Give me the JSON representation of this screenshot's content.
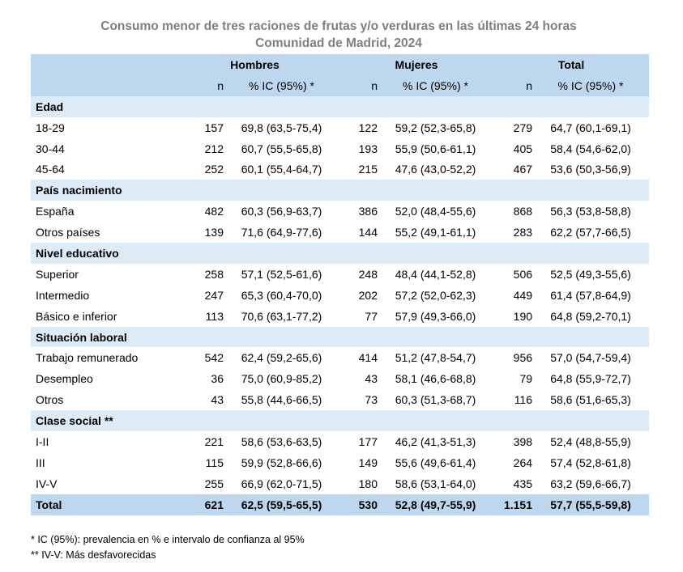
{
  "title": {
    "line1": "Consumo menor de tres raciones de frutas y/o verduras en las últimas 24 horas",
    "line2": "Comunidad de Madrid, 2024"
  },
  "header": {
    "groups": [
      "Hombres",
      "Mujeres",
      "Total"
    ],
    "n_label": "n",
    "pct_label": "% IC (95%) *"
  },
  "sections": [
    {
      "name": "Edad",
      "rows": [
        {
          "label": "18-29",
          "values": [
            "157",
            "69,8 (63,5-75,4)",
            "122",
            "59,2 (52,3-65,8)",
            "279",
            "64,7 (60,1-69,1)"
          ]
        },
        {
          "label": "30-44",
          "values": [
            "212",
            "60,7 (55,5-65,8)",
            "193",
            "55,9 (50,6-61,1)",
            "405",
            "58,4 (54,6-62,0)"
          ]
        },
        {
          "label": "45-64",
          "values": [
            "252",
            "60,1 (55,4-64,7)",
            "215",
            "47,6 (43,0-52,2)",
            "467",
            "53,6 (50,3-56,9)"
          ]
        }
      ]
    },
    {
      "name": "País nacimiento",
      "rows": [
        {
          "label": "España",
          "values": [
            "482",
            "60,3 (56,9-63,7)",
            "386",
            "52,0 (48,4-55,6)",
            "868",
            "56,3 (53,8-58,8)"
          ]
        },
        {
          "label": "Otros países",
          "values": [
            "139",
            "71,6 (64,9-77,6)",
            "144",
            "55,2 (49,1-61,1)",
            "283",
            "62,2 (57,7-66,5)"
          ]
        }
      ]
    },
    {
      "name": "Nivel educativo",
      "rows": [
        {
          "label": "Superior",
          "values": [
            "258",
            "57,1 (52,5-61,6)",
            "248",
            "48,4 (44,1-52,8)",
            "506",
            "52,5 (49,3-55,6)"
          ]
        },
        {
          "label": "Intermedio",
          "values": [
            "247",
            "65,3 (60,4-70,0)",
            "202",
            "57,2 (52,0-62,3)",
            "449",
            "61,4 (57,8-64,9)"
          ]
        },
        {
          "label": "Básico e inferior",
          "values": [
            "113",
            "70,6 (63,1-77,2)",
            "77",
            "57,9 (49,3-66,0)",
            "190",
            "64,8 (59,2-70,1)"
          ]
        }
      ]
    },
    {
      "name": "Situación laboral",
      "rows": [
        {
          "label": "Trabajo remunerado",
          "values": [
            "542",
            "62,4 (59,2-65,6)",
            "414",
            "51,2 (47,8-54,7)",
            "956",
            "57,0 (54,7-59,4)"
          ]
        },
        {
          "label": "Desempleo",
          "values": [
            "36",
            "75,0 (60,9-85,2)",
            "43",
            "58,1 (46,6-68,8)",
            "79",
            "64,8 (55,9-72,7)"
          ]
        },
        {
          "label": "Otros",
          "values": [
            "43",
            "55,8 (44,6-66,5)",
            "73",
            "60,3 (51,3-68,7)",
            "116",
            "58,6 (51,6-65,3)"
          ]
        }
      ]
    },
    {
      "name": "Clase social **",
      "rows": [
        {
          "label": "I-II",
          "values": [
            "221",
            "58,6 (53,6-63,5)",
            "177",
            "46,2 (41,3-51,3)",
            "398",
            "52,4 (48,8-55,9)"
          ]
        },
        {
          "label": "III",
          "values": [
            "115",
            "59,9 (52,8-66,6)",
            "149",
            "55,6 (49,6-61,4)",
            "264",
            "57,4 (52,8-61,8)"
          ]
        },
        {
          "label": "IV-V",
          "values": [
            "255",
            "66,9 (62,0-71,5)",
            "180",
            "58,6 (53,1-64,0)",
            "435",
            "63,2 (59,6-66,7)"
          ]
        }
      ]
    }
  ],
  "total": {
    "label": "Total",
    "values": [
      "621",
      "62,5 (59,5-65,5)",
      "530",
      "52,8 (49,7-55,9)",
      "1.151",
      "57,7 (55,5-59,8)"
    ]
  },
  "footnotes": [
    "* IC (95%): prevalencia en % e intervalo de confianza al 95%",
    "** IV-V: Más desfavorecidas"
  ],
  "colors": {
    "header_bg": "#bdd7ee",
    "section_bg": "#ddebf7",
    "title": "#7f7f7f"
  },
  "chart_data": {
    "type": "table",
    "columns": [
      "Hombres n",
      "Hombres % IC (95%)",
      "Mujeres n",
      "Mujeres % IC (95%)",
      "Total n",
      "Total % IC (95%)"
    ]
  }
}
